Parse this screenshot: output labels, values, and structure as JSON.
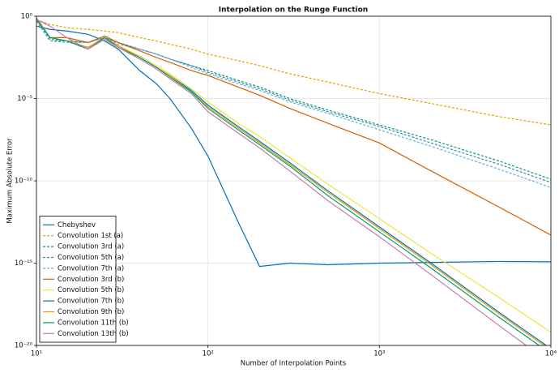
{
  "chart_data": {
    "type": "line",
    "title": "Interpolation on the Runge Function",
    "xlabel": "Number of Interpolation Points",
    "ylabel": "Maximum Absolute Error",
    "xscale": "log",
    "yscale": "log",
    "grid": true,
    "legend_position": "bottom-left",
    "xlim": [
      10,
      10000
    ],
    "ylim": [
      1e-20,
      1
    ],
    "xticks": [
      {
        "value": 10,
        "label": "10¹"
      },
      {
        "value": 100,
        "label": "10²"
      },
      {
        "value": 1000,
        "label": "10³"
      },
      {
        "value": 10000,
        "label": "10⁴"
      }
    ],
    "yticks": [
      {
        "value": 1,
        "label": "10⁰"
      },
      {
        "value": 1e-05,
        "label": "10⁻⁵"
      },
      {
        "value": 1e-10,
        "label": "10⁻¹⁰"
      },
      {
        "value": 1e-15,
        "label": "10⁻¹⁵"
      },
      {
        "value": 1e-20,
        "label": "10⁻²⁰"
      }
    ],
    "x": [
      10,
      12,
      15,
      20,
      25,
      30,
      40,
      50,
      60,
      80,
      100,
      150,
      200,
      300,
      500,
      1000,
      2000,
      5000,
      10000
    ],
    "series": [
      {
        "name": "Chebyshev",
        "color": "#0072b2",
        "dashed": false,
        "values": [
          0.251,
          0.158,
          0.126,
          0.0794,
          0.0316,
          0.01,
          0.000501,
          7.94e-05,
          1e-05,
          1.58e-07,
          3.16e-09,
          3.16e-13,
          6.31e-16,
          1e-15,
          7.94e-16,
          1e-15,
          1.1e-15,
          1.26e-15,
          1.2e-15
        ]
      },
      {
        "name": "Convolution 1st (a)",
        "color": "#e69f00",
        "dashed": true,
        "values": [
          0.631,
          0.316,
          0.2,
          0.158,
          0.126,
          0.1,
          0.0501,
          0.0316,
          0.02,
          0.01,
          0.00501,
          0.002,
          0.001,
          0.000316,
          0.0001,
          2e-05,
          5.01e-06,
          7.94e-07,
          2.51e-07
        ]
      },
      {
        "name": "Convolution 3rd (a)",
        "color": "#009e73",
        "dashed": true,
        "values": [
          0.501,
          0.0316,
          0.0316,
          0.0251,
          0.0501,
          0.0251,
          0.01,
          0.00501,
          0.00251,
          0.001,
          0.000501,
          0.000126,
          5.01e-05,
          1e-05,
          2e-06,
          2.51e-07,
          3.16e-08,
          1.58e-09,
          1.26e-10
        ]
      },
      {
        "name": "Convolution 5th (a)",
        "color": "#4f7fa8",
        "dashed": true,
        "values": [
          0.501,
          0.0398,
          0.0316,
          0.0251,
          0.0501,
          0.0251,
          0.01,
          0.00501,
          0.00251,
          0.001,
          0.000398,
          0.0001,
          3.98e-05,
          7.94e-06,
          1.58e-06,
          2e-07,
          2e-08,
          1e-09,
          7.94e-11
        ]
      },
      {
        "name": "Convolution 7th (a)",
        "color": "#56b4e9",
        "dashed": true,
        "values": [
          0.501,
          0.0316,
          0.0251,
          0.0251,
          0.0501,
          0.02,
          0.01,
          0.00501,
          0.00251,
          0.000794,
          0.000316,
          7.94e-05,
          3.16e-05,
          6.31e-06,
          1.26e-06,
          1.26e-07,
          1.26e-08,
          5.01e-10,
          3.98e-11
        ]
      },
      {
        "name": "Convolution 3rd (b)",
        "color": "#d55e00",
        "dashed": false,
        "values": [
          0.794,
          0.0501,
          0.0501,
          0.0251,
          0.0631,
          0.0251,
          0.00794,
          0.00316,
          0.00158,
          0.000501,
          0.000251,
          5.01e-05,
          1.58e-05,
          2.51e-06,
          3.16e-07,
          2e-08,
          3.98e-10,
          2.51e-12,
          5.01e-14
        ]
      },
      {
        "name": "Convolution 5th (b)",
        "color": "#f0e442",
        "dashed": false,
        "values": [
          0.631,
          0.0501,
          0.0316,
          0.0126,
          0.0501,
          0.0158,
          0.00398,
          0.001,
          0.000316,
          3.98e-05,
          6.31e-06,
          3.16e-07,
          5.01e-08,
          2.51e-09,
          6.31e-11,
          5.01e-13,
          3.98e-15,
          7.94e-18,
          6.31e-20
        ]
      },
      {
        "name": "Convolution 7th (b)",
        "color": "#0072b2",
        "dashed": false,
        "values": [
          0.631,
          0.0501,
          0.0316,
          0.0126,
          0.0501,
          0.0158,
          0.00316,
          0.000794,
          0.000251,
          3.16e-05,
          3.98e-06,
          2e-07,
          2.51e-08,
          1.26e-09,
          2.51e-11,
          1.58e-13,
          1e-15,
          1e-18,
          6.31e-21
        ]
      },
      {
        "name": "Convolution 9th (b)",
        "color": "#e69f00",
        "dashed": false,
        "values": [
          0.631,
          0.0501,
          0.0316,
          0.0126,
          0.0501,
          0.0158,
          0.00316,
          0.000794,
          0.000251,
          2.51e-05,
          3.16e-06,
          1.58e-07,
          2e-08,
          1e-09,
          2e-11,
          1.26e-13,
          7.94e-16,
          7.94e-19,
          5.01e-21
        ]
      },
      {
        "name": "Convolution 11th (b)",
        "color": "#009e73",
        "dashed": false,
        "values": [
          0.631,
          0.0501,
          0.0316,
          0.01,
          0.0501,
          0.0126,
          0.00316,
          0.000794,
          0.0002,
          2.51e-05,
          2.51e-06,
          1.26e-07,
          1.58e-08,
          7.94e-10,
          1.26e-11,
          7.94e-14,
          5.01e-16,
          5.01e-19,
          3.16e-21
        ]
      },
      {
        "name": "Convolution 13th (b)",
        "color": "#cc79a7",
        "dashed": false,
        "values": [
          0.631,
          0.251,
          0.0501,
          0.01,
          0.0398,
          0.0126,
          0.00251,
          0.000631,
          0.000158,
          2e-05,
          1.58e-06,
          7.94e-08,
          1e-08,
          3.98e-10,
          6.31e-12,
          3.98e-14,
          2e-16,
          1.58e-19,
          7.94e-22
        ]
      }
    ]
  }
}
